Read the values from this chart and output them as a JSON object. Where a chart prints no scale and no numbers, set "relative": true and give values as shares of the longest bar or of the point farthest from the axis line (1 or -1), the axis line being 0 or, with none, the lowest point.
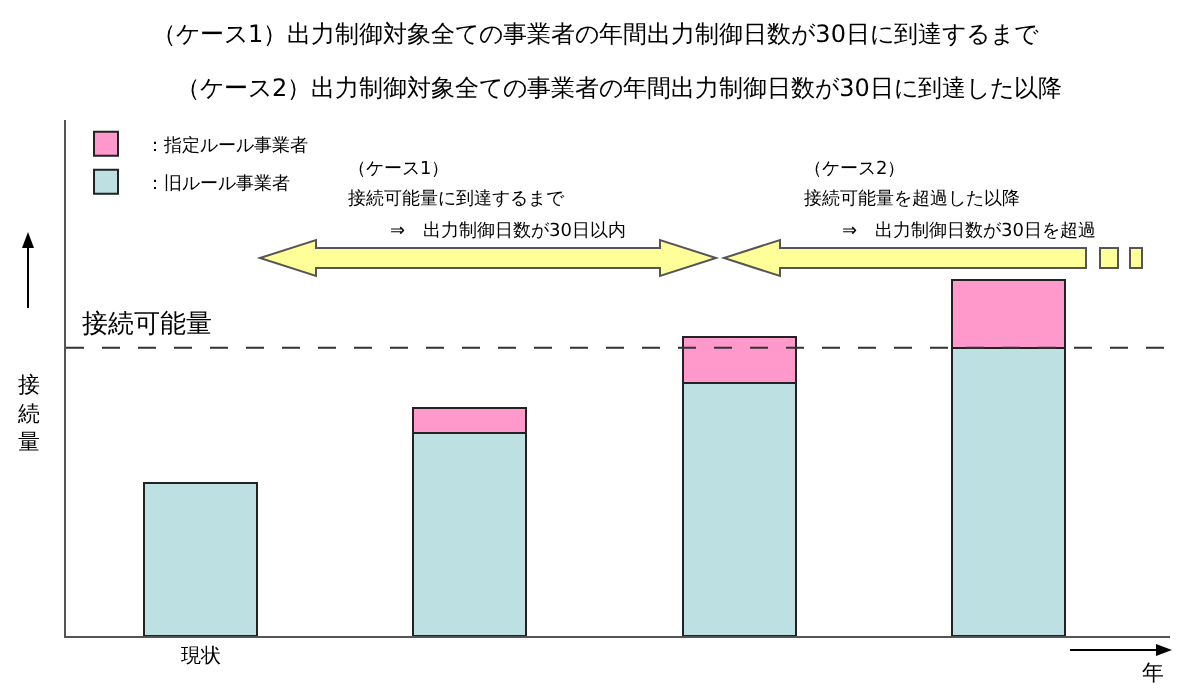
{
  "chart_data": {
    "type": "bar",
    "stacked": true,
    "relative": true,
    "title": "（ケース1）出力制御対象全ての事業者の年間出力制御日数が30日に到達するまで",
    "subtitle": "（ケース2）出力制御対象全ての事業者の年間出力制御日数が30日に到達した以降",
    "xlabel": "年",
    "ylabel": "接続量",
    "categories": [
      "現状",
      null,
      null,
      null
    ],
    "series": [
      {
        "name": "：旧ルール事業者",
        "color": "#bde0e3",
        "values": [
          0.43,
          0.57,
          0.71,
          0.81
        ]
      },
      {
        "name": "：指定ルール事業者",
        "color": "#ff99cc",
        "values": [
          null,
          0.07,
          0.13,
          0.19
        ]
      }
    ],
    "ref_lines": [
      {
        "axis": "y",
        "value": 0.81,
        "label": "接続可能量",
        "line_style": "dashed"
      }
    ],
    "annotations": [
      "（ケース1）",
      "接続可能量に到達するまで",
      "⇒　出力制御日数が30日以内",
      "（ケース2）",
      "接続可能量を超過した以降",
      "⇒　出力制御日数が30日を超過"
    ],
    "legend": "top left",
    "tick_labels": "x"
  }
}
